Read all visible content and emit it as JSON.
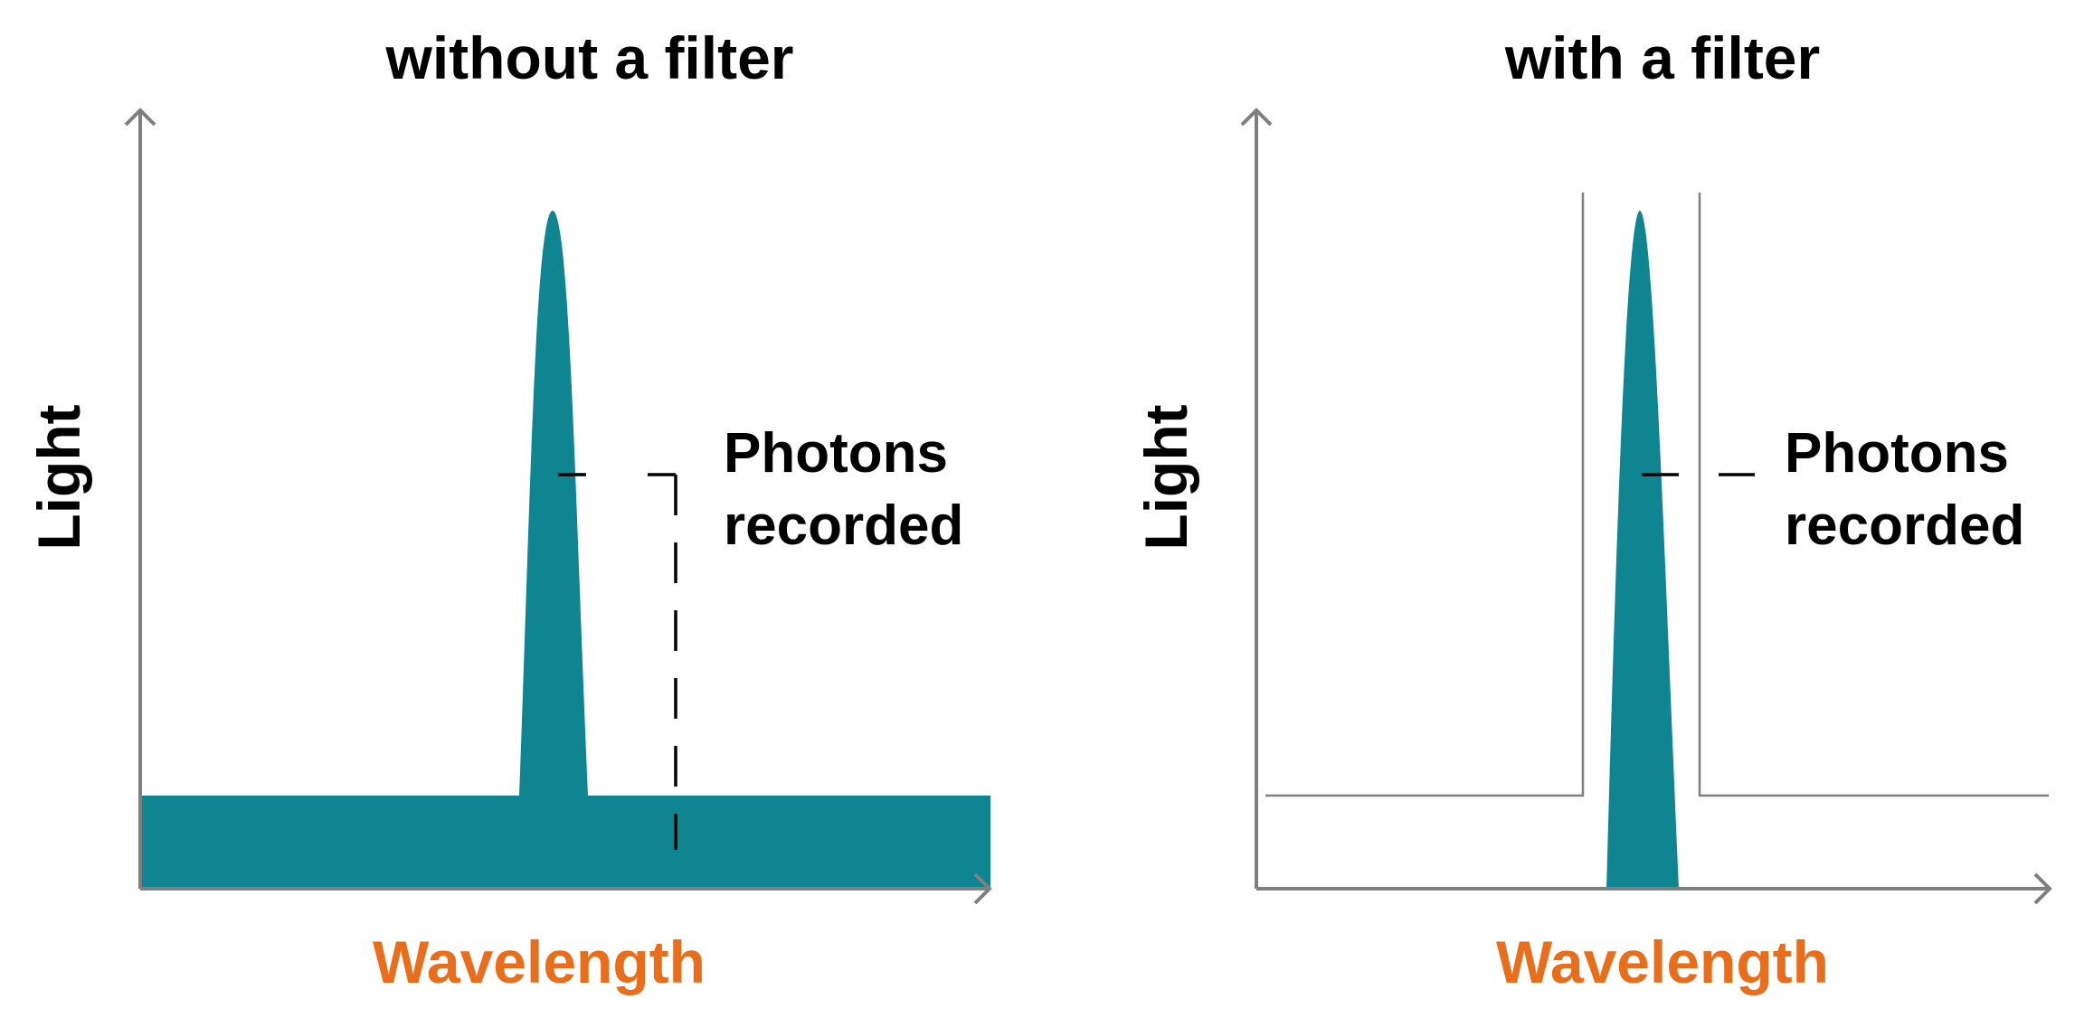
{
  "colors": {
    "signal": "#0f8591",
    "axis": "#7f7f7f",
    "xlabel": "#e86e1c",
    "text": "#000000",
    "filter_line": "#7f7f7f"
  },
  "panels": [
    {
      "title": "without a filter",
      "ylabel": "Light",
      "xlabel": "Wavelength",
      "annotation": [
        "Photons",
        "recorded"
      ],
      "has_filter": false
    },
    {
      "title": "with a filter",
      "ylabel": "Light",
      "xlabel": "Wavelength",
      "annotation": [
        "Photons",
        "recorded"
      ],
      "has_filter": true
    }
  ]
}
